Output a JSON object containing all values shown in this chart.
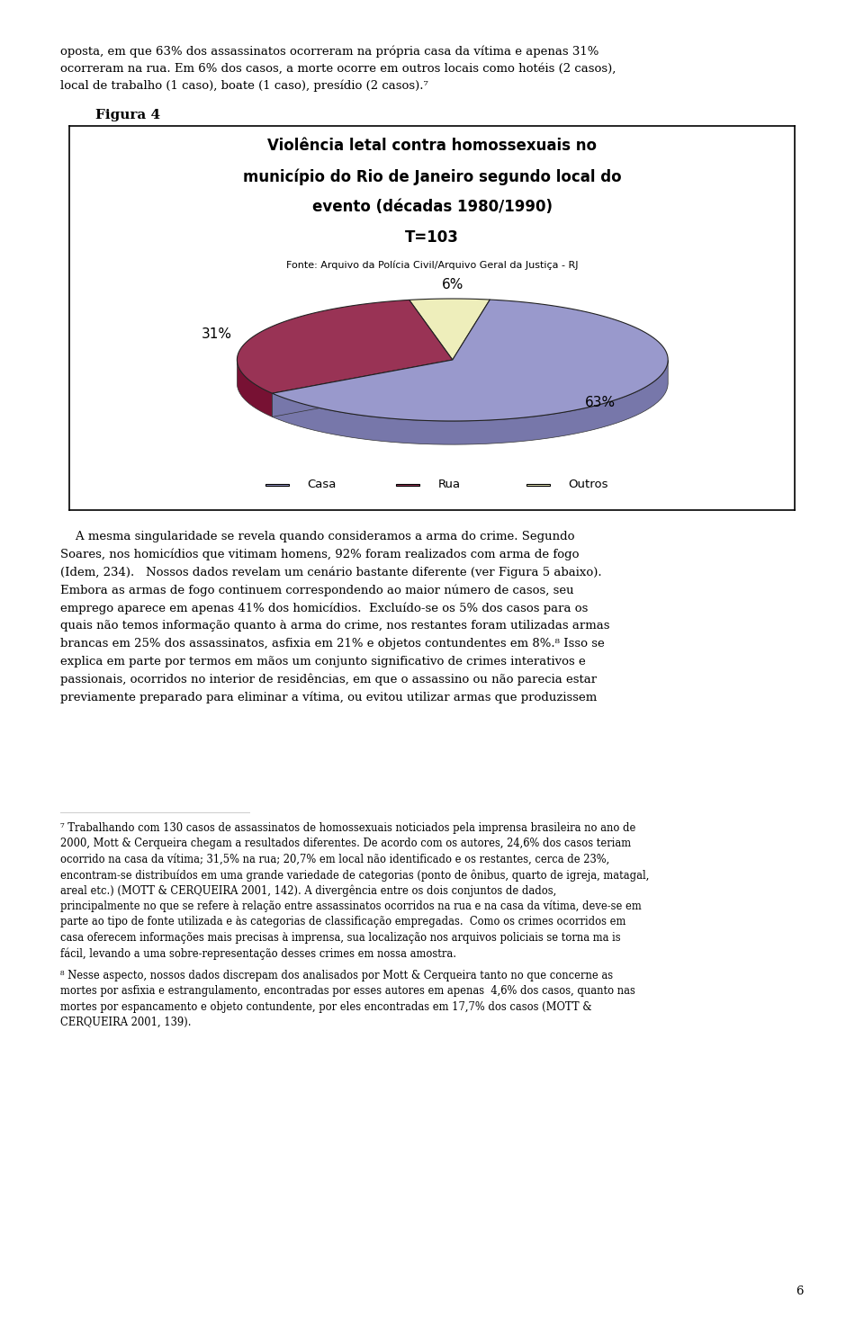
{
  "title_line1": "Violência letal contra homossexuais no",
  "title_line2": "município do Rio de Janeiro segundo local do",
  "title_line3": "evento (décadas 1980/1990)",
  "title_line4": "T=103",
  "source": "Fonte: Arquivo da Polícia Civil/Arquivo Geral da Justiça - RJ",
  "figura_label": "Figura 4",
  "slices": [
    63,
    31,
    6
  ],
  "labels": [
    "Casa",
    "Rua",
    "Outros"
  ],
  "pct_labels": [
    "63%",
    "31%",
    "6%"
  ],
  "colors_top": [
    "#9999CC",
    "#993355",
    "#EEEEBB"
  ],
  "colors_side": [
    "#7777AA",
    "#771133",
    "#AAAA77"
  ],
  "legend_colors": [
    "#9999CC",
    "#993355",
    "#EEEEBB"
  ],
  "background": "#FFFFFF",
  "chart_bg": "#FFFFFF",
  "border_color": "#000000",
  "figsize": [
    9.6,
    14.74
  ],
  "top_text": "oposta, em que 63% dos assassinatos ocorreram na própria casa da vítima e apenas 31%\nocorreram na rua. Em 6% dos casos, a morte ocorre em outros locais como hotéis (2 casos),\nlocal de trabalho (1 caso), boate (1 caso), presídio (2 casos).⁷",
  "mid_text1": "    A mesma singularidade se revela quando consideramos a arma do crime. Segundo\nSoares, nos homicídios que vitimam homens, 92% foram realizados com arma de fogo\n(Idem, 234).   Nossos dados revelam um cenário bastante diferente (ver ",
  "mid_text1b": "Figura 5",
  "mid_text1c": " abaixo).\nEmbora as armas de fogo continuem correspondendo ao maior número de casos, seu\nemprego aparece em apenas 41% dos homicídios.  Excluído-se os 5% dos casos para os\nquais não temos informação quanto à arma do crime, nos restantes foram utilizadas armas\nbrancas em 25% dos assassinatos, asfixia em 21% e objetos contundentes em 8%.⁸ Isso se\nexplica em parte por termos em mãos um conjunto significativo de crimes interativos e\npassionais, ocorridos no interior de residências, em que o assassino ou não parecia estar\npreviamente preparado para eliminar a vítima, ou evitou utilizar armas que produzissem",
  "footnote_line": "___________________________",
  "footnote7": "⁷ Trabalhando com 130 casos de assassinatos de homossexuais noticiados pela imprensa brasileira no ano de\n2000, Mott & Cerqueira chegam a resultados diferentes. De acordo com os autores, 24,6% dos casos teriam\nocorrido na casa da vítima; 31,5% na rua; 20,7% em local não identificado e os restantes, cerca de 23%,\nencontram-se distribuídos em uma grande variedade de categorias (ponto de ônibus, quarto de igreja, matagal,\nareal etc.) (MOTT & CERQUEIRA 2001, 142). A divergência entre os dois conjuntos de dados,\nprincipalmente no que se refere à relação entre assassinatos ocorridos na rua e na casa da vítima, deve-se em\nparte ao tipo de fonte utilizada e às categorias de classificação empregadas.  Como os crimes ocorridos em\ncasa oferecem informações mais precisas à imprensa, sua localização nos arquivos policiais se torna ma is\nfácil, levando a uma sobre-representação desses crimes em nossa amostra.",
  "footnote8": "⁸ Nesse aspecto, nossos dados discrepam dos analisados por Mott & Cerqueira tanto no que concerne as\nmortes por asfixia e estrangulamento, encontradas por esses autores em apenas  4,6% dos casos, quanto nas\nmortes por espancamento e objeto contundente, por eles encontradas em 17,7% dos casos (MOTT &\nCERQUEIRA 2001, 139).",
  "page_num": "6"
}
